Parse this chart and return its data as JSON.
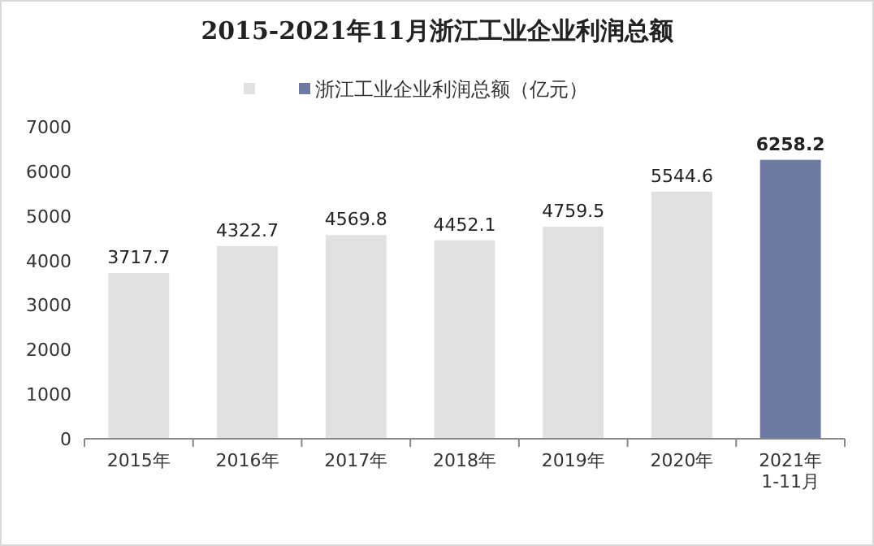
{
  "chart_data": {
    "type": "bar",
    "title": "2015-2021年11月浙江工业企业利润总额",
    "categories": [
      "2015年",
      "2016年",
      "2017年",
      "2018年",
      "2019年",
      "2020年",
      "2021年\n1-11月"
    ],
    "stacked": true,
    "series": [
      {
        "color": "#e1e1e1",
        "values": [
          3717.7,
          4322.7,
          4569.8,
          4452.1,
          4759.5,
          5544.6,
          null
        ]
      },
      {
        "name": "浙江工业企业利润总额（亿元）",
        "color": "#6e7aa1",
        "values": [
          null,
          null,
          null,
          null,
          null,
          null,
          6258.2
        ]
      }
    ],
    "ylim": [
      0,
      7000
    ],
    "yticks": [
      0,
      1000,
      2000,
      3000,
      4000,
      5000,
      6000,
      7000
    ],
    "data_labels": true,
    "legend": "top",
    "grid": false
  }
}
